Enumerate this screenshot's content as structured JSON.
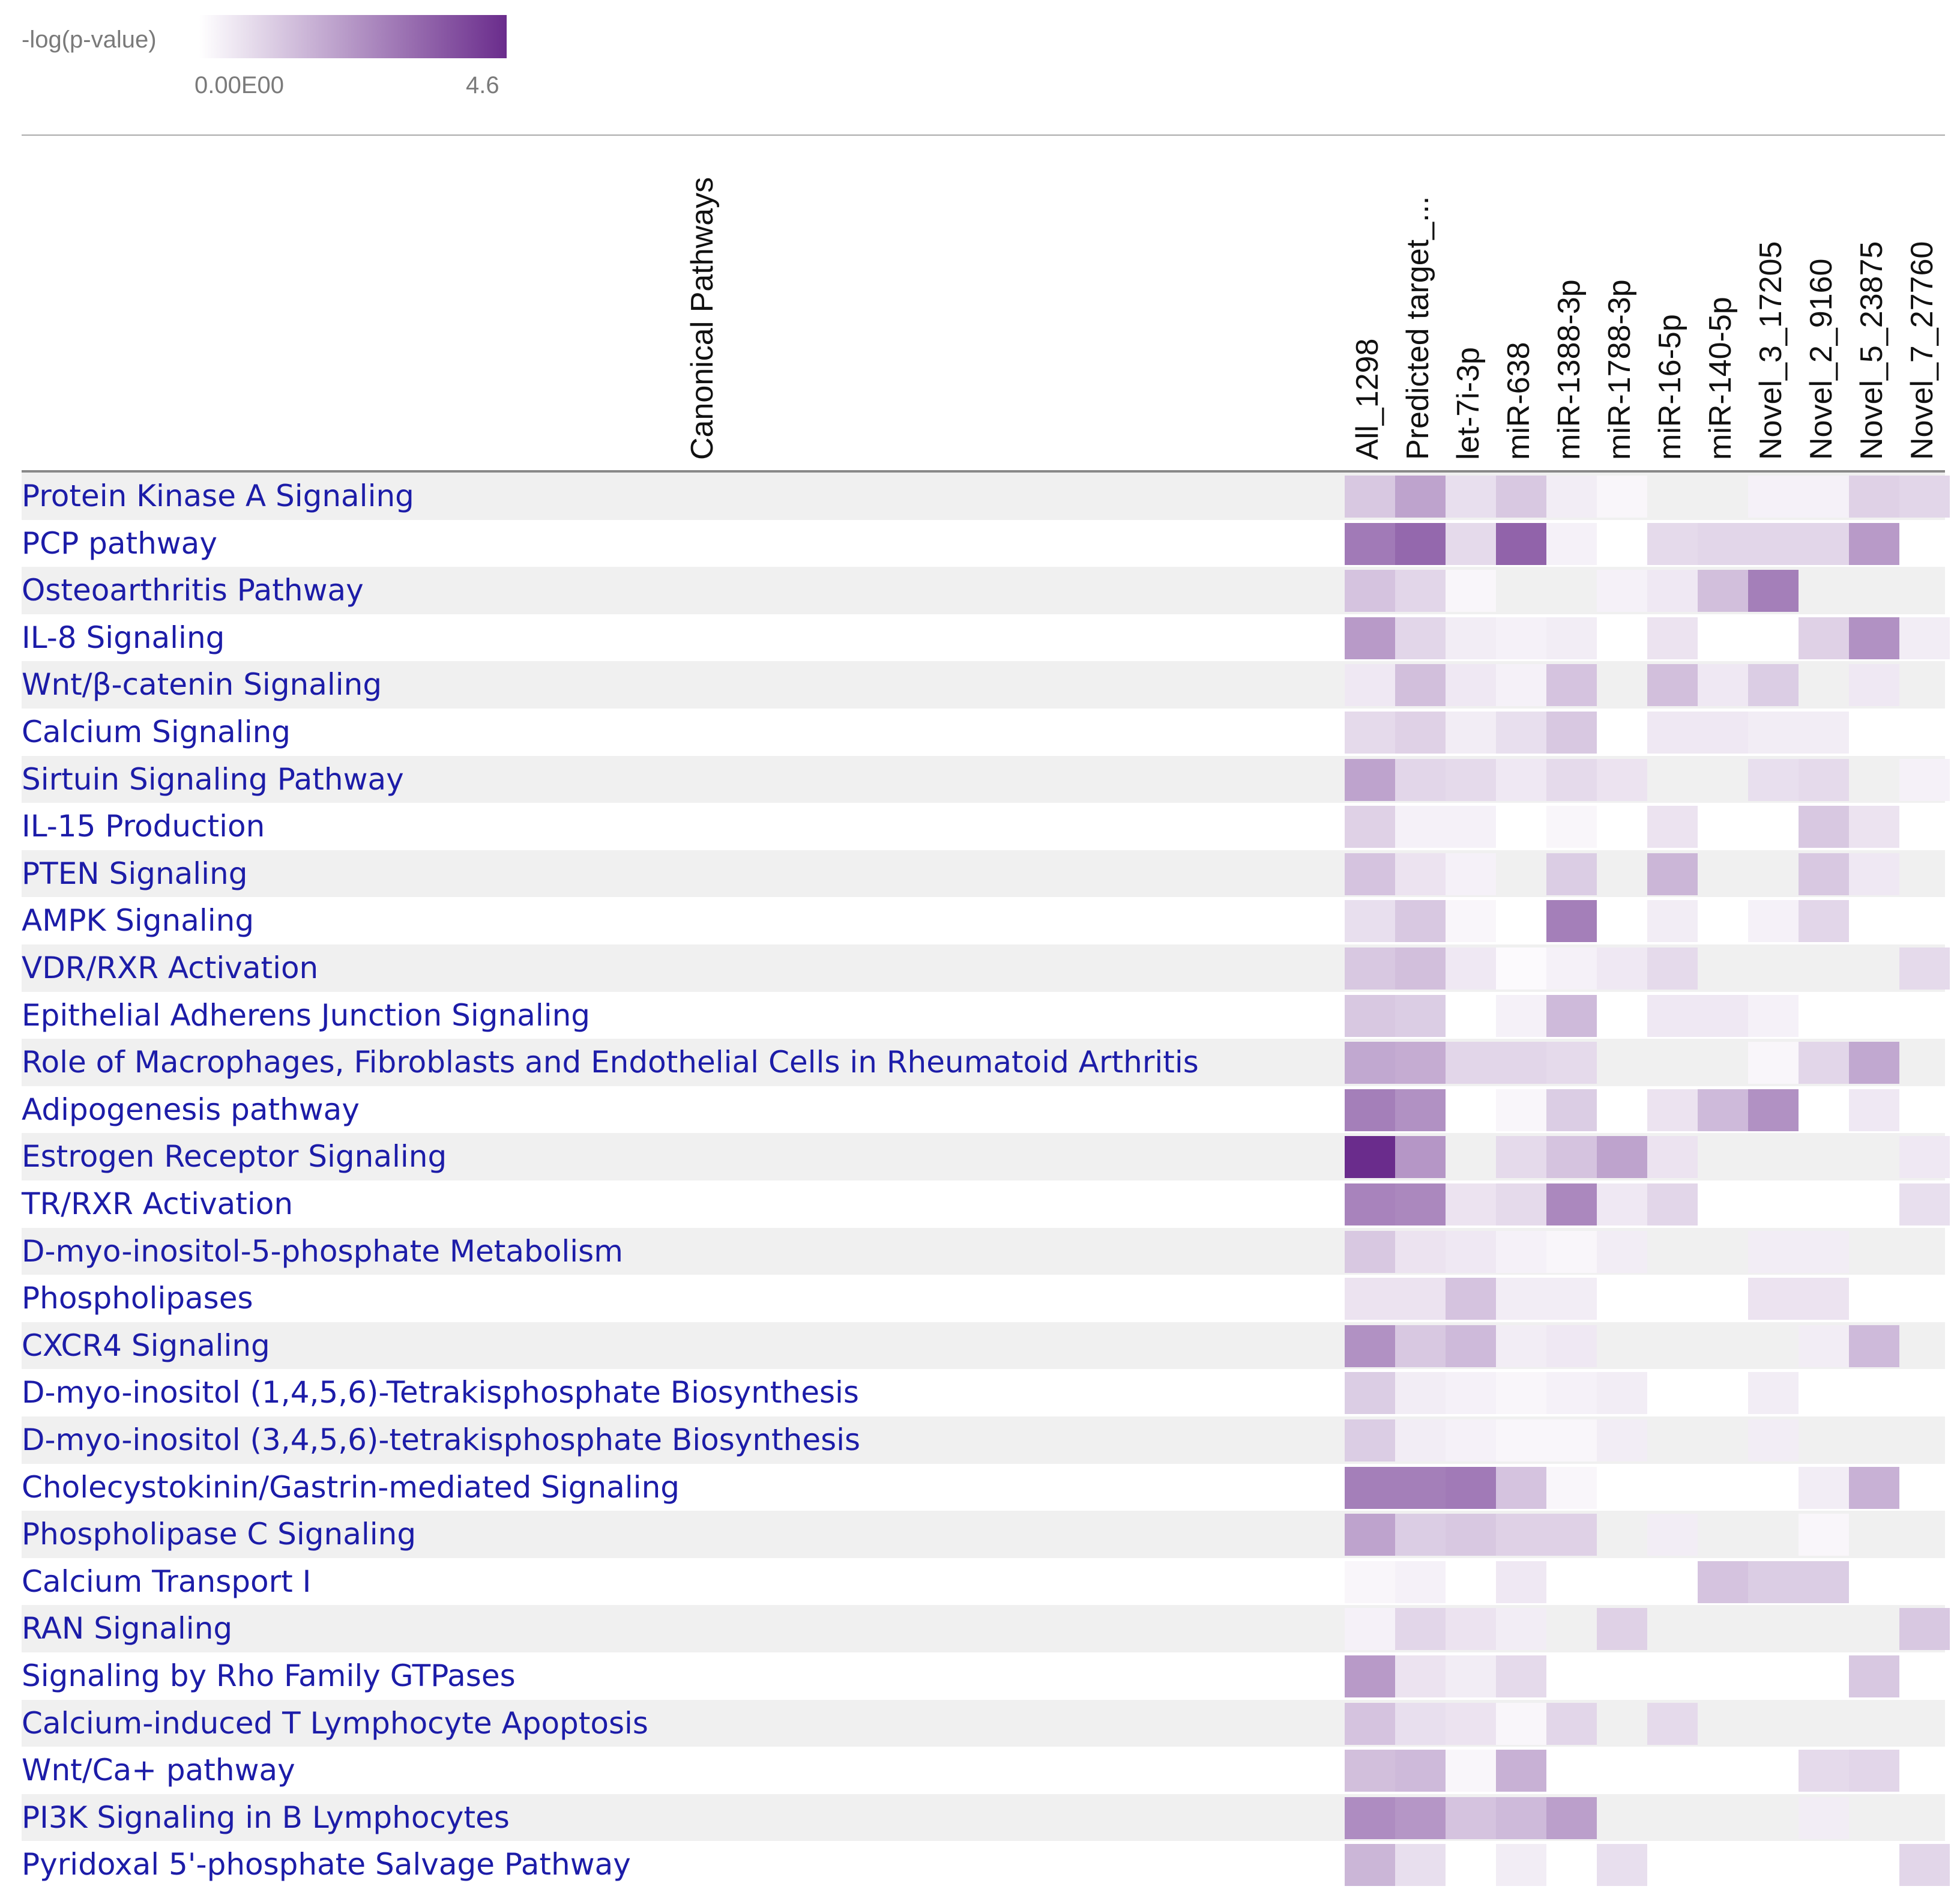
{
  "legend": {
    "title": "-log(p-value)",
    "min_label": "0.00E00",
    "max_label": "4.6",
    "min": 0,
    "max": 4.6,
    "color_low": "#ffffff",
    "color_high": "#6a2c8c"
  },
  "chart_data": {
    "type": "heatmap",
    "title": "",
    "row_header": "Canonical Pathways",
    "value_label": "-log(p-value)",
    "value_range": [
      0,
      4.6
    ],
    "columns": [
      "All_1298",
      "Predicted target_...",
      "let-7i-3p",
      "miR-638",
      "miR-1388-3p",
      "miR-1788-3p",
      "miR-16-5p",
      "miR-140-5p",
      "Novel_3_17205",
      "Novel_2_9160",
      "Novel_5_23875",
      "Novel_7_27760"
    ],
    "rows": [
      "Protein Kinase A Signaling",
      "PCP pathway",
      "Osteoarthritis Pathway",
      "IL-8 Signaling",
      "Wnt/β-catenin Signaling",
      "Calcium Signaling",
      "Sirtuin Signaling Pathway",
      "IL-15 Production",
      "PTEN Signaling",
      "AMPK Signaling",
      "VDR/RXR Activation",
      "Epithelial Adherens Junction Signaling",
      "Role of Macrophages, Fibroblasts and Endothelial Cells in Rheumatoid Arthritis",
      "Adipogenesis pathway",
      "Estrogen Receptor Signaling",
      "TR/RXR Activation",
      "D-myo-inositol-5-phosphate Metabolism",
      "Phospholipases",
      "CXCR4 Signaling",
      "D-myo-inositol (1,4,5,6)-Tetrakisphosphate Biosynthesis",
      "D-myo-inositol (3,4,5,6)-tetrakisphosphate Biosynthesis",
      "Cholecystokinin/Gastrin-mediated Signaling",
      "Phospholipase C Signaling",
      "Calcium Transport I",
      "RAN Signaling",
      "Signaling by Rho Family GTPases",
      "Calcium-induced T Lymphocyte Apoptosis",
      "Wnt/Ca+ pathway",
      "PI3K Signaling in B Lymphocytes",
      "Pyridoxal 5'-phosphate Salvage Pathway"
    ],
    "values": [
      [
        1.2,
        2.0,
        0.7,
        1.2,
        0.4,
        0.2,
        0.0,
        0.0,
        0.3,
        0.3,
        1.0,
        0.9
      ],
      [
        2.9,
        3.3,
        0.8,
        3.4,
        0.3,
        0.0,
        0.8,
        0.9,
        0.9,
        0.9,
        2.2,
        0.0
      ],
      [
        1.3,
        0.9,
        0.2,
        0.0,
        0.0,
        0.3,
        0.5,
        1.4,
        2.8,
        0.0,
        0.0,
        0.0
      ],
      [
        2.2,
        0.9,
        0.4,
        0.3,
        0.4,
        0.0,
        0.6,
        0.0,
        0.0,
        1.0,
        2.4,
        0.4
      ],
      [
        0.5,
        1.4,
        0.5,
        0.3,
        1.3,
        0.0,
        1.4,
        0.5,
        1.1,
        0.0,
        0.5,
        0.0
      ],
      [
        0.8,
        1.0,
        0.4,
        0.7,
        1.2,
        0.0,
        0.5,
        0.5,
        0.4,
        0.4,
        0.0,
        0.0
      ],
      [
        2.0,
        0.9,
        0.8,
        0.5,
        0.8,
        0.6,
        0.0,
        0.0,
        0.7,
        0.8,
        0.0,
        0.3
      ],
      [
        1.0,
        0.3,
        0.3,
        0.0,
        0.2,
        0.0,
        0.6,
        0.0,
        0.0,
        1.2,
        0.6,
        0.0
      ],
      [
        1.3,
        0.6,
        0.3,
        0.0,
        1.1,
        0.0,
        1.6,
        0.0,
        0.0,
        1.2,
        0.5,
        0.0
      ],
      [
        0.7,
        1.2,
        0.2,
        0.0,
        2.8,
        0.0,
        0.4,
        0.0,
        0.3,
        0.9,
        0.0,
        0.0
      ],
      [
        1.2,
        1.4,
        0.5,
        0.1,
        0.3,
        0.5,
        0.8,
        0.0,
        0.0,
        0.0,
        0.0,
        0.8
      ],
      [
        1.2,
        1.1,
        0.0,
        0.3,
        1.5,
        0.0,
        0.5,
        0.5,
        0.3,
        0.0,
        0.0,
        0.0
      ],
      [
        1.9,
        1.8,
        0.9,
        0.9,
        0.8,
        0.0,
        0.0,
        0.0,
        0.2,
        0.9,
        1.9,
        0.0
      ],
      [
        2.8,
        2.4,
        0.0,
        0.2,
        1.1,
        0.0,
        0.6,
        1.5,
        2.4,
        0.0,
        0.5,
        0.0
      ],
      [
        4.6,
        2.3,
        0.0,
        0.8,
        1.3,
        2.0,
        0.6,
        0.0,
        0.0,
        0.0,
        0.0,
        0.5
      ],
      [
        2.7,
        2.6,
        0.6,
        0.8,
        2.6,
        0.5,
        0.9,
        0.0,
        0.0,
        0.0,
        0.0,
        0.7
      ],
      [
        1.2,
        0.6,
        0.5,
        0.3,
        0.2,
        0.4,
        0.0,
        0.0,
        0.4,
        0.4,
        0.0,
        0.0
      ],
      [
        0.6,
        0.6,
        1.3,
        0.4,
        0.4,
        0.0,
        0.0,
        0.0,
        0.6,
        0.6,
        0.0,
        0.0
      ],
      [
        2.4,
        1.2,
        1.5,
        0.4,
        0.5,
        0.0,
        0.0,
        0.0,
        0.0,
        0.4,
        1.5,
        0.0
      ],
      [
        1.1,
        0.4,
        0.3,
        0.2,
        0.3,
        0.4,
        0.0,
        0.0,
        0.4,
        0.0,
        0.0,
        0.0
      ],
      [
        1.1,
        0.4,
        0.3,
        0.2,
        0.2,
        0.4,
        0.0,
        0.0,
        0.4,
        0.0,
        0.0,
        0.0
      ],
      [
        2.8,
        2.8,
        2.9,
        1.3,
        0.2,
        0.0,
        0.0,
        0.0,
        0.0,
        0.4,
        1.7,
        0.0
      ],
      [
        2.0,
        1.1,
        1.2,
        1.0,
        1.0,
        0.0,
        0.4,
        0.0,
        0.0,
        0.2,
        0.0,
        0.0
      ],
      [
        0.2,
        0.3,
        0.0,
        0.5,
        0.0,
        0.0,
        0.0,
        1.3,
        1.1,
        1.1,
        0.0,
        0.0
      ],
      [
        0.3,
        0.9,
        0.6,
        0.4,
        0.0,
        1.0,
        0.0,
        0.0,
        0.0,
        0.0,
        0.0,
        1.2
      ],
      [
        2.2,
        0.6,
        0.4,
        0.8,
        0.0,
        0.0,
        0.0,
        0.0,
        0.0,
        0.0,
        1.2,
        0.0
      ],
      [
        1.3,
        0.7,
        0.6,
        0.2,
        0.9,
        0.0,
        0.8,
        0.0,
        0.0,
        0.0,
        0.0,
        0.0
      ],
      [
        1.4,
        1.5,
        0.2,
        1.7,
        0.0,
        0.0,
        0.0,
        0.0,
        0.0,
        0.8,
        0.9,
        0.0
      ],
      [
        2.5,
        2.3,
        1.3,
        1.5,
        2.1,
        0.0,
        0.0,
        0.0,
        0.0,
        0.4,
        0.0,
        0.0
      ],
      [
        1.6,
        0.7,
        0.0,
        0.4,
        0.0,
        0.7,
        0.0,
        0.0,
        0.0,
        0.0,
        0.0,
        0.9
      ]
    ]
  }
}
